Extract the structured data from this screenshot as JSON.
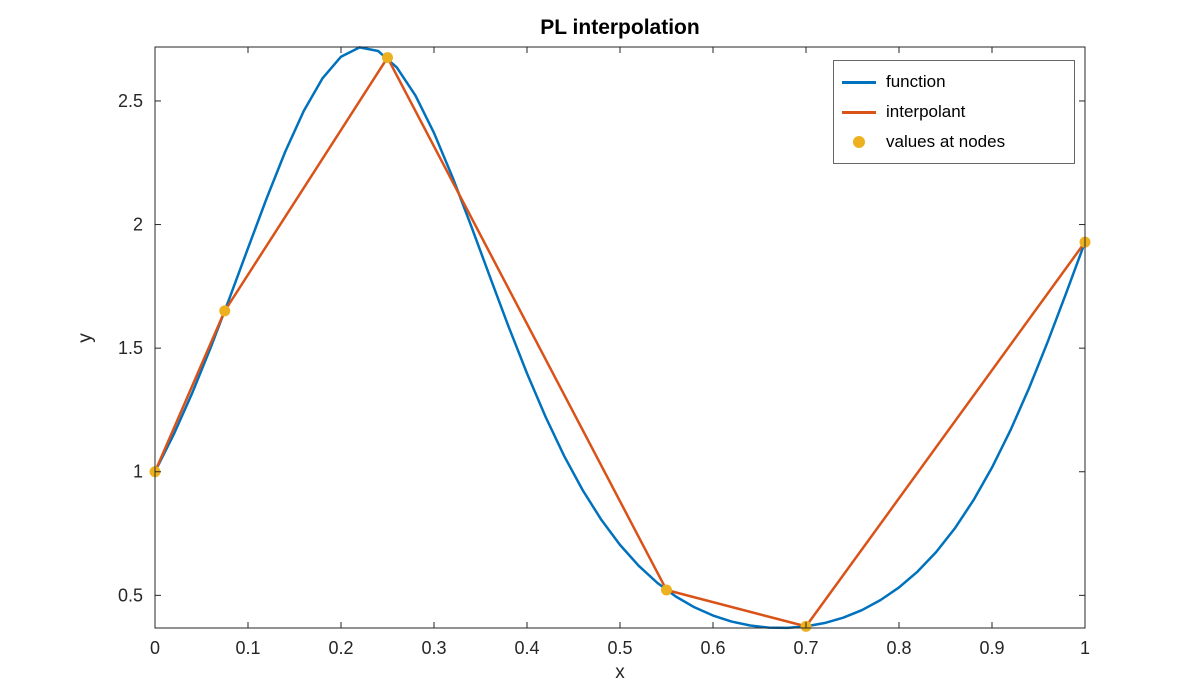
{
  "chart_data": {
    "type": "line",
    "title": "PL interpolation",
    "xlabel": "x",
    "ylabel": "y",
    "xlim": [
      0,
      1
    ],
    "ylim": [
      0.3679,
      2.7183
    ],
    "x_ticks": [
      0,
      0.1,
      0.2,
      0.3,
      0.4,
      0.5,
      0.6,
      0.7,
      0.8,
      0.9,
      1
    ],
    "y_ticks": [
      0.5,
      1,
      1.5,
      2,
      2.5
    ],
    "grid": false,
    "background": "#ffffff",
    "axis_color": "#262626",
    "legend": {
      "position": "top-right",
      "entries": [
        "function",
        "interpolant",
        "values at nodes"
      ]
    },
    "series": [
      {
        "name": "function",
        "type": "line",
        "color": "#0072BD",
        "width": 2.5,
        "x": [
          0,
          0.02,
          0.04,
          0.06,
          0.08,
          0.1,
          0.12,
          0.14,
          0.16,
          0.18,
          0.2,
          0.22,
          0.24,
          0.26,
          0.28,
          0.3,
          0.32,
          0.34,
          0.36,
          0.38,
          0.4,
          0.42,
          0.44,
          0.46,
          0.48,
          0.5,
          0.52,
          0.54,
          0.56,
          0.58,
          0.6,
          0.62,
          0.64,
          0.66,
          0.68,
          0.7,
          0.72,
          0.74,
          0.76,
          0.78,
          0.8,
          0.82,
          0.84,
          0.86,
          0.88,
          0.9,
          0.92,
          0.94,
          0.96,
          0.98,
          1.0
        ],
        "y": [
          1.0,
          1.1497,
          1.3183,
          1.5034,
          1.701,
          1.9045,
          2.1057,
          2.2945,
          2.4598,
          2.591,
          2.6789,
          2.7169,
          2.7021,
          2.6355,
          2.5224,
          2.3707,
          2.1909,
          1.9938,
          1.7902,
          1.589,
          1.3979,
          1.2221,
          1.0635,
          0.9247,
          0.8052,
          0.7041,
          0.6201,
          0.551,
          0.4954,
          0.4517,
          0.4183,
          0.394,
          0.3779,
          0.3694,
          0.3683,
          0.3744,
          0.388,
          0.4096,
          0.4399,
          0.4807,
          0.5319,
          0.5964,
          0.6755,
          0.7709,
          0.8844,
          1.017,
          1.169,
          1.3397,
          1.5266,
          1.7252,
          1.929
        ]
      },
      {
        "name": "interpolant",
        "type": "line",
        "color": "#D95319",
        "width": 2.5,
        "x": [
          0,
          0.075,
          0.25,
          0.55,
          0.7,
          1
        ],
        "y": [
          1.0,
          1.6508,
          2.6752,
          0.5217,
          0.3744,
          1.929
        ]
      },
      {
        "name": "values at nodes",
        "type": "scatter",
        "color": "#EDB120",
        "marker_size": 5.5,
        "x": [
          0,
          0.075,
          0.25,
          0.55,
          0.7,
          1
        ],
        "y": [
          1.0,
          1.6508,
          2.6752,
          0.5217,
          0.3744,
          1.929
        ]
      }
    ]
  }
}
